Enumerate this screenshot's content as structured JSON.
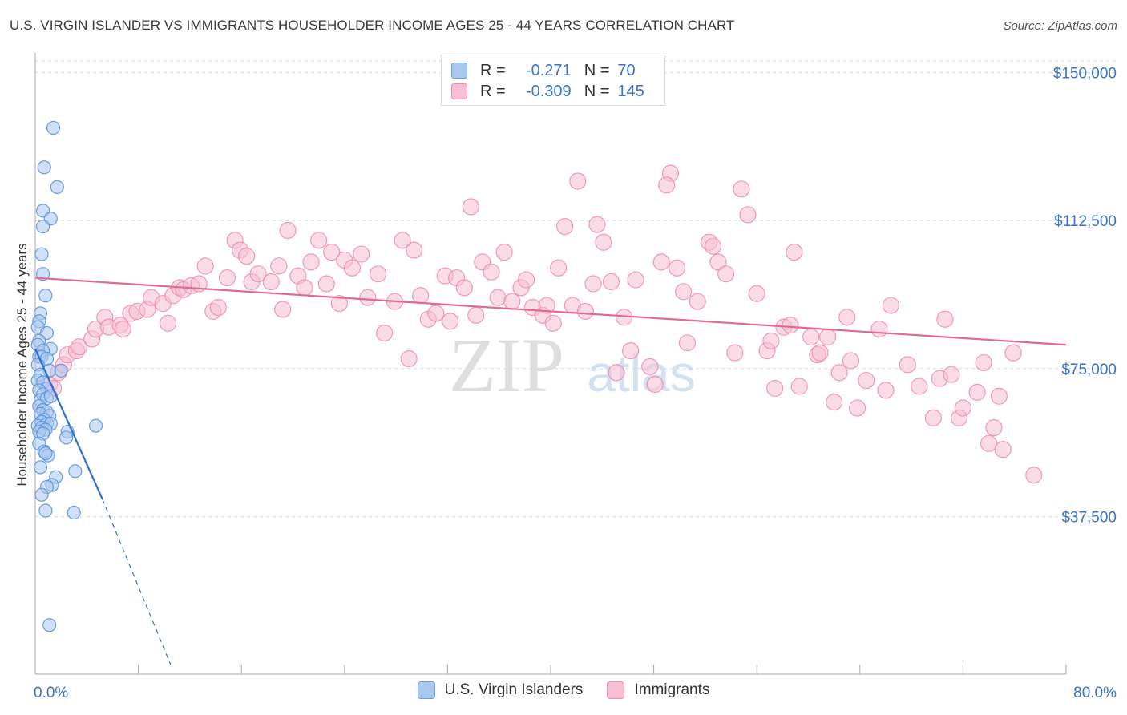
{
  "title": "U.S. VIRGIN ISLANDER VS IMMIGRANTS HOUSEHOLDER INCOME AGES 25 - 44 YEARS CORRELATION CHART",
  "source": "Source: ZipAtlas.com",
  "watermark": {
    "zip": "ZIP",
    "atlas": "atlas"
  },
  "legend": {
    "rows": [
      {
        "r_label": "R =",
        "r_value": "-0.271",
        "n_label": "N =",
        "n_value": "70",
        "color": "#a9c8f0",
        "border": "#6a9fe0"
      },
      {
        "r_label": "R =",
        "r_value": "-0.309",
        "n_label": "N =",
        "n_value": "145",
        "color": "#f8c0d2",
        "border": "#ec8fb0"
      }
    ]
  },
  "bottom_legend": [
    {
      "label": "U.S. Virgin Islanders",
      "color": "#a9c8f0",
      "border": "#6a9fe0"
    },
    {
      "label": "Immigrants",
      "color": "#f8c0d2",
      "border": "#ec8fb0"
    }
  ],
  "chart_data": {
    "type": "scatter",
    "xlabel": "",
    "ylabel": "Householder Income Ages 25 - 44 years",
    "xlim": [
      0,
      80
    ],
    "ylim": [
      0,
      155000
    ],
    "x_tick_labels": [
      {
        "value": 0,
        "label": "0.0%"
      },
      {
        "value": 80,
        "label": "80.0%"
      }
    ],
    "y_tick_labels": [
      {
        "value": 37500,
        "label": "$37,500"
      },
      {
        "value": 75000,
        "label": "$75,000"
      },
      {
        "value": 112500,
        "label": "$112,500"
      },
      {
        "value": 150000,
        "label": "$150,000"
      }
    ],
    "x_minor_ticks": [
      0,
      8,
      16,
      24,
      32,
      40,
      48,
      56,
      64,
      72,
      80
    ],
    "grid": true,
    "series": [
      {
        "name": "U.S. Virgin Islanders",
        "color": "#a9c8f0",
        "stroke": "#5b93dc",
        "trend": {
          "x": [
            0,
            5.2
          ],
          "y": [
            80000,
            42000
          ],
          "dashed_to": {
            "x": 10.5,
            "y": 0
          },
          "color": "#2f6fd0"
        },
        "points": [
          [
            1.4,
            136000
          ],
          [
            0.7,
            126000
          ],
          [
            1.7,
            121000
          ],
          [
            0.6,
            115000
          ],
          [
            1.2,
            113000
          ],
          [
            0.6,
            111000
          ],
          [
            0.5,
            104000
          ],
          [
            0.6,
            99000
          ],
          [
            0.8,
            93500
          ],
          [
            0.4,
            89000
          ],
          [
            0.3,
            87000
          ],
          [
            0.2,
            85500
          ],
          [
            0.9,
            84000
          ],
          [
            0.3,
            82000
          ],
          [
            0.2,
            81000
          ],
          [
            1.2,
            80000
          ],
          [
            0.6,
            79500
          ],
          [
            0.3,
            78000
          ],
          [
            0.5,
            78000
          ],
          [
            0.9,
            77500
          ],
          [
            0.2,
            76000
          ],
          [
            1.1,
            74500
          ],
          [
            0.4,
            73500
          ],
          [
            2.0,
            74500
          ],
          [
            0.2,
            72000
          ],
          [
            0.6,
            71500
          ],
          [
            0.9,
            70000
          ],
          [
            0.3,
            69500
          ],
          [
            0.6,
            68500
          ],
          [
            0.4,
            67000
          ],
          [
            0.9,
            67500
          ],
          [
            1.2,
            68000
          ],
          [
            0.3,
            65500
          ],
          [
            0.6,
            64500
          ],
          [
            0.9,
            64000
          ],
          [
            0.4,
            63500
          ],
          [
            1.1,
            63000
          ],
          [
            0.7,
            62000
          ],
          [
            0.5,
            61500
          ],
          [
            0.9,
            61000
          ],
          [
            1.2,
            61000
          ],
          [
            0.2,
            60500
          ],
          [
            0.5,
            60000
          ],
          [
            0.8,
            59500
          ],
          [
            0.3,
            59000
          ],
          [
            4.7,
            60500
          ],
          [
            2.5,
            59000
          ],
          [
            2.4,
            57500
          ],
          [
            0.6,
            58500
          ],
          [
            0.3,
            56000
          ],
          [
            0.7,
            54000
          ],
          [
            1.0,
            53000
          ],
          [
            0.8,
            53500
          ],
          [
            0.4,
            50000
          ],
          [
            3.1,
            49000
          ],
          [
            1.6,
            47500
          ],
          [
            1.3,
            45500
          ],
          [
            0.9,
            45000
          ],
          [
            0.5,
            43000
          ],
          [
            0.8,
            39000
          ],
          [
            3.0,
            38500
          ],
          [
            1.1,
            10000
          ]
        ]
      },
      {
        "name": "Immigrants",
        "color": "#f8c0d2",
        "stroke": "#ec8fb0",
        "trend": {
          "x": [
            0,
            80
          ],
          "y": [
            98000,
            81000
          ],
          "color": "#e06a90"
        },
        "points": [
          [
            1.1,
            71000
          ],
          [
            1.4,
            70000
          ],
          [
            1.8,
            74000
          ],
          [
            2.2,
            76000
          ],
          [
            2.5,
            78500
          ],
          [
            3.2,
            79500
          ],
          [
            3.4,
            80500
          ],
          [
            4.4,
            82500
          ],
          [
            4.7,
            85000
          ],
          [
            5.4,
            88000
          ],
          [
            5.7,
            85500
          ],
          [
            6.6,
            86000
          ],
          [
            6.8,
            85000
          ],
          [
            7.4,
            89000
          ],
          [
            7.9,
            89500
          ],
          [
            8.7,
            90000
          ],
          [
            9.0,
            93000
          ],
          [
            9.9,
            91500
          ],
          [
            10.3,
            86500
          ],
          [
            10.7,
            93500
          ],
          [
            11.2,
            95500
          ],
          [
            11.5,
            95000
          ],
          [
            12.1,
            96000
          ],
          [
            12.7,
            96500
          ],
          [
            13.2,
            101000
          ],
          [
            13.8,
            89500
          ],
          [
            14.2,
            90500
          ],
          [
            14.9,
            98000
          ],
          [
            15.5,
            107500
          ],
          [
            15.9,
            105000
          ],
          [
            16.4,
            103500
          ],
          [
            16.8,
            97000
          ],
          [
            17.3,
            99000
          ],
          [
            18.3,
            97000
          ],
          [
            18.9,
            101000
          ],
          [
            19.2,
            90000
          ],
          [
            19.6,
            110000
          ],
          [
            20.4,
            98500
          ],
          [
            20.9,
            95500
          ],
          [
            21.4,
            102000
          ],
          [
            22.0,
            107500
          ],
          [
            22.6,
            96500
          ],
          [
            23.0,
            104500
          ],
          [
            23.6,
            91500
          ],
          [
            24.0,
            102500
          ],
          [
            24.6,
            100500
          ],
          [
            25.3,
            104000
          ],
          [
            25.8,
            93000
          ],
          [
            26.6,
            99000
          ],
          [
            27.1,
            84000
          ],
          [
            27.9,
            92000
          ],
          [
            28.5,
            107500
          ],
          [
            29.0,
            77500
          ],
          [
            29.4,
            105000
          ],
          [
            29.9,
            93500
          ],
          [
            30.5,
            87500
          ],
          [
            31.1,
            89000
          ],
          [
            31.8,
            98500
          ],
          [
            32.2,
            87000
          ],
          [
            32.7,
            98000
          ],
          [
            33.3,
            95500
          ],
          [
            33.8,
            116000
          ],
          [
            34.2,
            88500
          ],
          [
            34.7,
            102000
          ],
          [
            35.4,
            99500
          ],
          [
            35.9,
            93000
          ],
          [
            36.4,
            104500
          ],
          [
            37.0,
            92000
          ],
          [
            37.7,
            95500
          ],
          [
            38.1,
            97500
          ],
          [
            38.6,
            90500
          ],
          [
            39.4,
            88500
          ],
          [
            39.7,
            91000
          ],
          [
            40.2,
            86500
          ],
          [
            40.6,
            100500
          ],
          [
            41.1,
            111000
          ],
          [
            41.7,
            91000
          ],
          [
            42.1,
            122500
          ],
          [
            42.7,
            89500
          ],
          [
            43.3,
            96500
          ],
          [
            43.6,
            111500
          ],
          [
            44.1,
            107000
          ],
          [
            44.7,
            97000
          ],
          [
            45.1,
            74000
          ],
          [
            45.7,
            88000
          ],
          [
            46.2,
            79500
          ],
          [
            46.6,
            97500
          ],
          [
            47.7,
            75500
          ],
          [
            48.1,
            71000
          ],
          [
            48.6,
            102000
          ],
          [
            49.3,
            124500
          ],
          [
            49.0,
            121500
          ],
          [
            49.8,
            100500
          ],
          [
            50.3,
            94500
          ],
          [
            50.6,
            81500
          ],
          [
            51.4,
            92000
          ],
          [
            52.3,
            107000
          ],
          [
            53.0,
            102000
          ],
          [
            52.6,
            106000
          ],
          [
            53.6,
            99000
          ],
          [
            54.3,
            79000
          ],
          [
            54.8,
            120500
          ],
          [
            55.3,
            114000
          ],
          [
            56.0,
            94000
          ],
          [
            56.8,
            79500
          ],
          [
            57.1,
            82000
          ],
          [
            57.4,
            70000
          ],
          [
            58.1,
            85500
          ],
          [
            58.6,
            86000
          ],
          [
            58.9,
            104500
          ],
          [
            59.3,
            70500
          ],
          [
            60.2,
            83000
          ],
          [
            60.7,
            78500
          ],
          [
            60.9,
            79000
          ],
          [
            61.5,
            83000
          ],
          [
            62.0,
            66500
          ],
          [
            62.4,
            74000
          ],
          [
            63.0,
            88000
          ],
          [
            63.3,
            77000
          ],
          [
            63.8,
            65000
          ],
          [
            64.5,
            72000
          ],
          [
            65.5,
            85000
          ],
          [
            66.0,
            69500
          ],
          [
            66.4,
            91000
          ],
          [
            67.7,
            76000
          ],
          [
            68.6,
            70500
          ],
          [
            69.7,
            62500
          ],
          [
            70.2,
            72500
          ],
          [
            70.6,
            87500
          ],
          [
            71.1,
            73500
          ],
          [
            71.7,
            62500
          ],
          [
            72.0,
            65000
          ],
          [
            73.1,
            69000
          ],
          [
            73.6,
            76500
          ],
          [
            74.0,
            56000
          ],
          [
            74.4,
            60000
          ],
          [
            74.8,
            68000
          ],
          [
            75.1,
            54500
          ],
          [
            75.9,
            79000
          ],
          [
            77.5,
            48000
          ]
        ]
      }
    ]
  }
}
